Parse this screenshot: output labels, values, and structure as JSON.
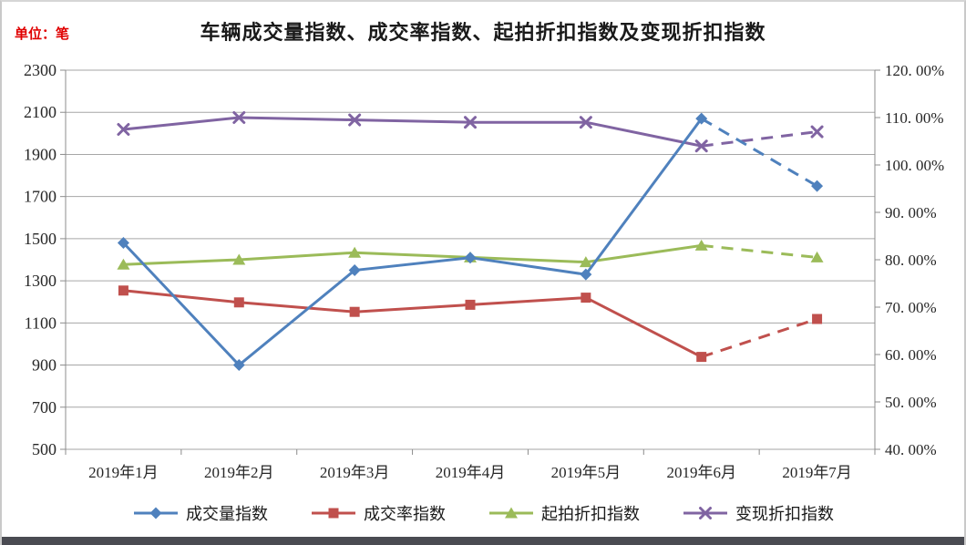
{
  "header": {
    "title": "车辆成交量指数、成交率指数、起拍折扣指数及变现折扣指数",
    "unit_label": "单位：笔"
  },
  "colors": {
    "title": "#1a1a1a",
    "unit_label": "#e00000",
    "grid": "#a6a6a6",
    "axis": "#8c8c8c",
    "tick_text": "#262626",
    "bottom_bar": "#4a4b52",
    "volume": "#4F81BD",
    "deal_rate": "#C0504D",
    "start_discount": "#9BBB59",
    "realization_discount": "#8064A2"
  },
  "chart_data": {
    "type": "line",
    "title": "车辆成交量指数、成交率指数、起拍折扣指数及变现折扣指数",
    "categories": [
      "2019年1月",
      "2019年2月",
      "2019年3月",
      "2019年4月",
      "2019年5月",
      "2019年6月",
      "2019年7月"
    ],
    "series": [
      {
        "key": "volume-index",
        "name": "成交量指数",
        "axis": "left",
        "marker": "diamond",
        "color": "#4F81BD",
        "values": [
          1480,
          900,
          1350,
          1410,
          1330,
          2070,
          1750
        ],
        "dashed_from_index": 5
      },
      {
        "key": "deal-rate-index",
        "name": "成交率指数",
        "axis": "right",
        "marker": "square",
        "color": "#C0504D",
        "values": [
          73.5,
          71.0,
          69.0,
          70.5,
          72.0,
          59.5,
          67.5
        ],
        "dashed_from_index": 5
      },
      {
        "key": "start-discount-index",
        "name": "起拍折扣指数",
        "axis": "right",
        "marker": "triangle",
        "color": "#9BBB59",
        "values": [
          79.0,
          80.0,
          81.5,
          80.5,
          79.5,
          83.0,
          80.5
        ],
        "dashed_from_index": 5
      },
      {
        "key": "realization-discount-index",
        "name": "变现折扣指数",
        "axis": "right",
        "marker": "x",
        "color": "#8064A2",
        "values": [
          107.5,
          110.0,
          109.5,
          109.0,
          109.0,
          104.0,
          107.0
        ],
        "dashed_from_index": 5
      }
    ],
    "left_axis": {
      "min": 500,
      "max": 2300,
      "step": 200,
      "tick_labels": [
        "2300",
        "2100",
        "1900",
        "1700",
        "1500",
        "1300",
        "1100",
        "900",
        "700",
        "500"
      ]
    },
    "right_axis": {
      "min": 40,
      "max": 120,
      "step": 10,
      "tick_labels": [
        "120. 00%",
        "110. 00%",
        "100. 00%",
        "90. 00%",
        "80. 00%",
        "70. 00%",
        "60. 00%",
        "50. 00%",
        "40. 00%"
      ]
    },
    "grid": true,
    "legend_position": "bottom"
  },
  "legend": {
    "items": [
      "成交量指数",
      "成交率指数",
      "起拍折扣指数",
      "变现折扣指数"
    ]
  }
}
